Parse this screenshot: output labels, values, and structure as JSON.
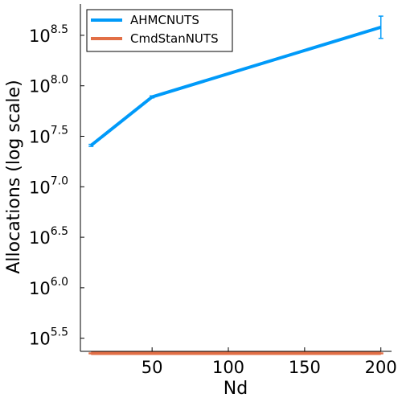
{
  "chart_data": {
    "type": "line",
    "xlabel": "Nd",
    "ylabel": "Allocations (log scale)",
    "yscale": "log10",
    "xlim": [
      3,
      207
    ],
    "ylim_log10": [
      5.37,
      8.81
    ],
    "x_ticks": [
      50,
      100,
      150,
      200
    ],
    "x_tick_labels": [
      "50",
      "100",
      "150",
      "200"
    ],
    "y_ticks_log10": [
      5.5,
      6.0,
      6.5,
      7.0,
      7.5,
      8.0,
      8.5
    ],
    "y_tick_base": "10",
    "y_tick_exponents": [
      "5.5",
      "6.0",
      "6.5",
      "7.0",
      "7.5",
      "8.0",
      "8.5"
    ],
    "grid": false,
    "legend_position": "top-left",
    "series": [
      {
        "name": "AHMCNUTS",
        "color": "#009AF9",
        "x": [
          10,
          50,
          200
        ],
        "y_log10": [
          7.41,
          7.89,
          8.58
        ],
        "err_log10": [
          0.01,
          0.01,
          0.11
        ]
      },
      {
        "name": "CmdStanNUTS",
        "color": "#E26F46",
        "x": [
          10,
          50,
          200
        ],
        "y_log10": [
          5.35,
          5.35,
          5.35
        ],
        "err_log10": [
          0.004,
          0.004,
          0.004
        ]
      }
    ]
  }
}
